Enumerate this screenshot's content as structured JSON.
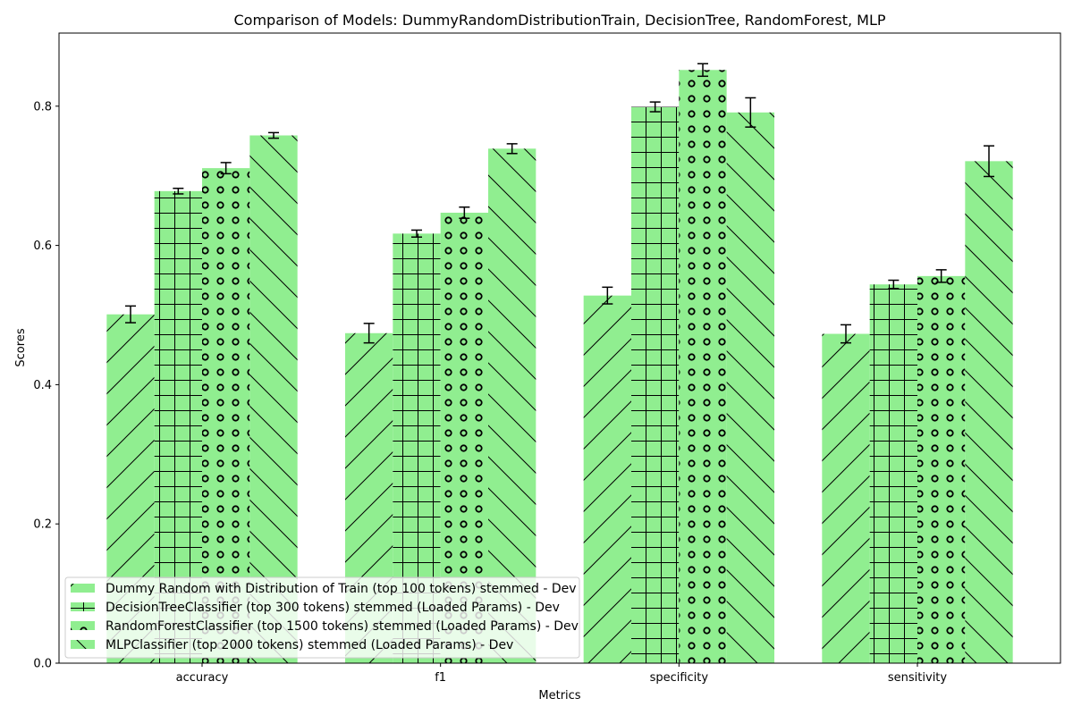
{
  "chart_data": {
    "type": "bar",
    "title": "Comparison of Models: DummyRandomDistributionTrain, DecisionTree, RandomForest, MLP",
    "xlabel": "Metrics",
    "ylabel": "Scores",
    "categories": [
      "accuracy",
      "f1",
      "specificity",
      "sensitivity"
    ],
    "ylim": [
      0,
      0.905
    ],
    "yticks": [
      0.0,
      0.2,
      0.4,
      0.6,
      0.8
    ],
    "ytick_labels": [
      "0.0",
      "0.2",
      "0.4",
      "0.6",
      "0.8"
    ],
    "grid": false,
    "legend_position": "lower-left",
    "bar_color": "#90ee90",
    "series": [
      {
        "name": "Dummy Random with Distribution of Train (top 100 tokens) stemmed - Dev",
        "hatch": "forward-diagonal",
        "values": [
          0.501,
          0.474,
          0.528,
          0.473
        ],
        "errors": [
          0.012,
          0.014,
          0.012,
          0.013
        ]
      },
      {
        "name": "DecisionTreeClassifier (top 300 tokens) stemmed (Loaded Params) - Dev",
        "hatch": "grid",
        "values": [
          0.678,
          0.617,
          0.799,
          0.544
        ],
        "errors": [
          0.004,
          0.005,
          0.007,
          0.006
        ]
      },
      {
        "name": "RandomForestClassifier (top 1500 tokens) stemmed (Loaded Params) - Dev",
        "hatch": "circles",
        "values": [
          0.711,
          0.647,
          0.852,
          0.556
        ],
        "errors": [
          0.008,
          0.008,
          0.009,
          0.009
        ]
      },
      {
        "name": "MLPClassifier (top 2000 tokens) stemmed (Loaded Params) - Dev",
        "hatch": "back-diagonal",
        "values": [
          0.758,
          0.739,
          0.791,
          0.721
        ],
        "errors": [
          0.004,
          0.007,
          0.021,
          0.022
        ]
      }
    ]
  }
}
